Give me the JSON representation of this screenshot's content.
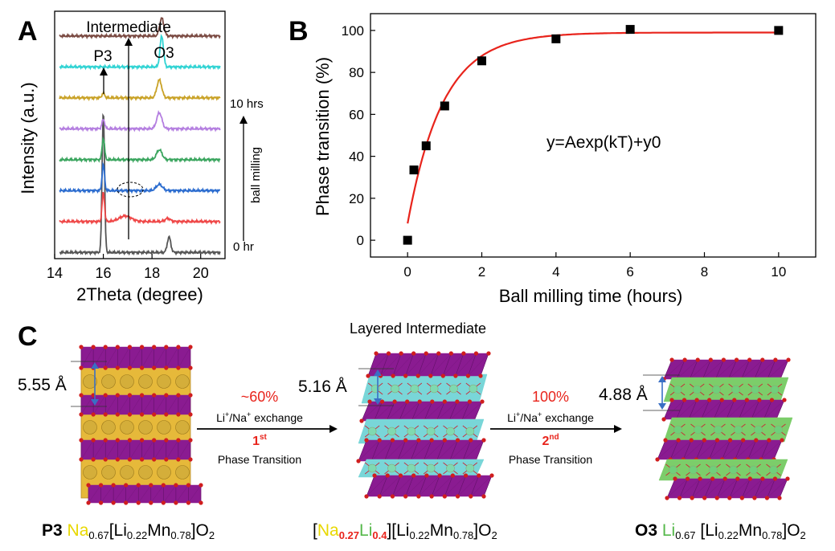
{
  "panels": {
    "a": "A",
    "b": "B",
    "c": "C"
  },
  "colors": {
    "fit": "#e8241c",
    "marker": "#000000",
    "violet": "#8a1b91",
    "na_site": "#e6b93a",
    "li_site_cyan": "#79d6d8",
    "li_site_green": "#7ccd6a",
    "oxygen": "#d01e1e",
    "highlight_red": "#e8241c",
    "na_text": "#e8d800",
    "li_text": "#55b84a"
  },
  "chart_data": [
    {
      "type": "line",
      "panel": "A",
      "xlabel": "2Theta (degree)",
      "ylabel": "Intensity (a.u.)",
      "xlim": [
        14,
        21
      ],
      "xticks": [
        14,
        16,
        18,
        20
      ],
      "ylim": [
        0,
        8
      ],
      "annotations": {
        "intermediate": "Intermediate",
        "p3": "P3",
        "o3": "O3",
        "time_end": "10 hrs",
        "time_start": "0 hr",
        "process": "ball milling"
      },
      "series": [
        {
          "color": "#555555",
          "offset": 0,
          "peaks": [
            [
              16.0,
              4.6,
              0.07
            ],
            [
              18.7,
              0.5,
              0.1
            ]
          ]
        },
        {
          "color": "#ef4747",
          "offset": 1,
          "peaks": [
            [
              16.0,
              0.95,
              0.07
            ],
            [
              16.9,
              0.18,
              0.35
            ],
            [
              18.65,
              0.1,
              0.15
            ]
          ]
        },
        {
          "color": "#2b6ccf",
          "offset": 2,
          "peaks": [
            [
              16.0,
              0.85,
              0.07
            ],
            [
              18.3,
              0.2,
              0.18
            ]
          ]
        },
        {
          "color": "#3aa55e",
          "offset": 3,
          "peaks": [
            [
              16.0,
              0.7,
              0.07
            ],
            [
              18.3,
              0.32,
              0.16
            ]
          ]
        },
        {
          "color": "#b47ee0",
          "offset": 4,
          "peaks": [
            [
              16.0,
              0.3,
              0.08
            ],
            [
              18.3,
              0.52,
              0.15
            ]
          ]
        },
        {
          "color": "#c9a227",
          "offset": 5,
          "peaks": [
            [
              16.0,
              0.15,
              0.08
            ],
            [
              18.3,
              0.58,
              0.14
            ]
          ]
        },
        {
          "color": "#2fd3d3",
          "offset": 6,
          "peaks": [
            [
              18.4,
              1.0,
              0.1
            ]
          ]
        },
        {
          "color": "#7a4a42",
          "offset": 7,
          "peaks": [
            [
              18.4,
              0.58,
              0.12
            ]
          ]
        }
      ]
    },
    {
      "type": "scatter",
      "panel": "B",
      "xlabel": "Ball milling time (hours)",
      "ylabel": "Phase transition (%)",
      "xlim": [
        -1,
        11
      ],
      "ylim": [
        -8,
        108
      ],
      "xticks": [
        0,
        2,
        4,
        6,
        8,
        10
      ],
      "yticks": [
        0,
        20,
        40,
        60,
        80,
        100
      ],
      "equation": "y=Aexp(kT)+y0",
      "x": [
        0,
        0.17,
        0.5,
        1,
        2,
        4,
        6,
        10
      ],
      "y": [
        0,
        33.5,
        45,
        64,
        85.5,
        96,
        100.5,
        100
      ],
      "fit": {
        "y_plateau": 99,
        "amplitude": 91,
        "rate": 1.05
      }
    }
  ],
  "scheme": {
    "title": "Layered Intermediate",
    "spacing_1": "5.55 Å",
    "spacing_2": "5.16 Å",
    "spacing_3": "4.88 Å",
    "step1": {
      "percent": "~60%",
      "exchange": "Li",
      "exchange_rest": "/Na",
      "exchange_end": " exchange",
      "sup_a": "+",
      "sup_b": "+",
      "order": "1",
      "order_sup": "st",
      "label": "Phase Transition"
    },
    "step2": {
      "percent": "100%",
      "exchange": "Li",
      "exchange_rest": "/Na",
      "exchange_end": " exchange",
      "sup_a": "+",
      "sup_b": "+",
      "order": "2",
      "order_sup": "nd",
      "label": "Phase Transition"
    }
  },
  "formulas": {
    "f1": {
      "phase": "P3",
      "a": "Na",
      "a_sub": "0.67",
      "b": "[Li",
      "b_sub": "0.22",
      "c": "Mn",
      "c_sub": "0.78",
      "d": "]O",
      "d_sub": "2"
    },
    "f2": {
      "open": "[",
      "a": "Na",
      "a_sub": "0.27",
      "l": "Li",
      "l_sub": "0.4",
      "b": "][Li",
      "b_sub": "0.22",
      "c": "Mn",
      "c_sub": "0.78",
      "d": "]O",
      "d_sub": "2"
    },
    "f3": {
      "phase": "O3",
      "a": "Li",
      "a_sub": "0.67",
      "b": "[Li",
      "b_sub": "0.22",
      "c": "Mn",
      "c_sub": "0.78",
      "d": "]O",
      "d_sub": "2"
    }
  }
}
